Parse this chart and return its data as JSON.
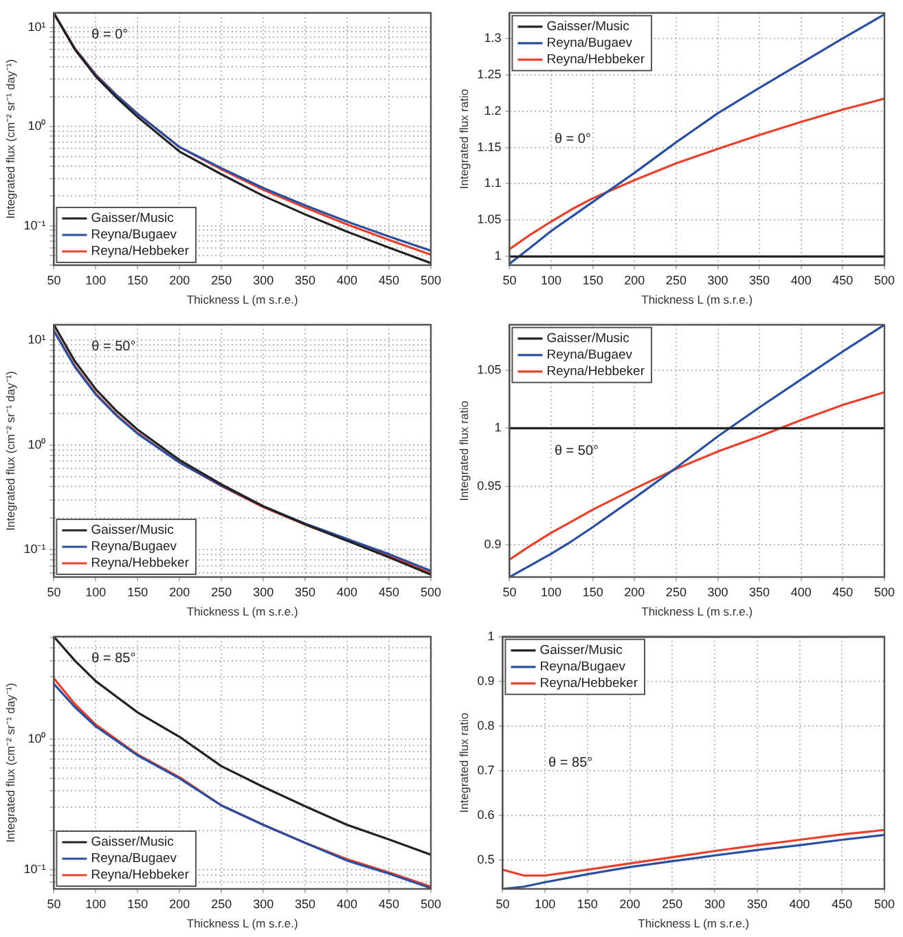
{
  "chart_data": [
    {
      "type": "line",
      "xlabel": "Thickness L (m s.r.e.)",
      "ylabel": "Integrated flux (cm⁻² sr⁻¹ day⁻¹)",
      "annotations": [
        "θ = 0°"
      ],
      "log": "y",
      "grid": true,
      "legend": "bottom left",
      "line_style": "solid",
      "marker": "none",
      "x": [
        50,
        75,
        100,
        125,
        150,
        200,
        250,
        300,
        350,
        400,
        450,
        500
      ],
      "xlim": [
        50,
        500
      ],
      "xticks": [
        50,
        100,
        150,
        200,
        250,
        300,
        350,
        400,
        450,
        500
      ],
      "ylim": [
        0.04,
        14
      ],
      "yticks": [
        {
          "value": 0.04,
          "label": null
        },
        {
          "value": 0.05,
          "label": null
        },
        {
          "value": 0.06,
          "label": null
        },
        {
          "value": 0.07,
          "label": null
        },
        {
          "value": 0.08,
          "label": null
        },
        {
          "value": 0.09,
          "label": null
        },
        {
          "value": 0.1,
          "label": "10⁻¹"
        },
        {
          "value": 0.2,
          "label": null
        },
        {
          "value": 0.3,
          "label": null
        },
        {
          "value": 0.4,
          "label": null
        },
        {
          "value": 0.5,
          "label": null
        },
        {
          "value": 0.6,
          "label": null
        },
        {
          "value": 0.7,
          "label": null
        },
        {
          "value": 0.8,
          "label": null
        },
        {
          "value": 0.9,
          "label": null
        },
        {
          "value": 1,
          "label": "10⁰"
        },
        {
          "value": 2,
          "label": null
        },
        {
          "value": 3,
          "label": null
        },
        {
          "value": 4,
          "label": null
        },
        {
          "value": 5,
          "label": null
        },
        {
          "value": 6,
          "label": null
        },
        {
          "value": 7,
          "label": null
        },
        {
          "value": 8,
          "label": null
        },
        {
          "value": 9,
          "label": null
        },
        {
          "value": 10,
          "label": "10¹"
        }
      ],
      "series": [
        {
          "name": "Gaisser/Music",
          "color": "#222222",
          "values": [
            13.9,
            6.0,
            3.2,
            1.95,
            1.25,
            0.56,
            0.33,
            0.2,
            0.13,
            0.087,
            0.06,
            0.042
          ]
        },
        {
          "name": "Reyna/Bugaev",
          "color": "#2b4fa0",
          "values": [
            13.8,
            6.1,
            3.3,
            2.05,
            1.34,
            0.62,
            0.38,
            0.24,
            0.16,
            0.11,
            0.078,
            0.056
          ]
        },
        {
          "name": "Reyna/Hebbeker",
          "color": "#e8402a",
          "values": [
            14.0,
            6.15,
            3.35,
            2.07,
            1.35,
            0.62,
            0.37,
            0.23,
            0.152,
            0.103,
            0.072,
            0.051
          ]
        }
      ]
    },
    {
      "type": "line",
      "xlabel": "Thickness L (m s.r.e.)",
      "ylabel": "Integrated flux ratio",
      "annotations": [
        "θ = 0°"
      ],
      "grid": true,
      "legend": "top left",
      "line_style": "solid",
      "marker": "none",
      "x": [
        50,
        75,
        100,
        125,
        150,
        200,
        250,
        300,
        350,
        400,
        450,
        500
      ],
      "xlim": [
        50,
        500
      ],
      "xticks": [
        50,
        100,
        150,
        200,
        250,
        300,
        350,
        400,
        450,
        500
      ],
      "ylim": [
        0.988,
        1.335
      ],
      "yticks": [
        1,
        1.05,
        1.1,
        1.15,
        1.2,
        1.25,
        1.3
      ],
      "series": [
        {
          "name": "Gaisser/Music",
          "color": "#222222",
          "values": [
            1,
            1,
            1,
            1,
            1,
            1,
            1,
            1,
            1,
            1,
            1,
            1
          ]
        },
        {
          "name": "Reyna/Bugaev",
          "color": "#2b4fa0",
          "values": [
            0.99,
            1.012,
            1.035,
            1.055,
            1.075,
            1.115,
            1.157,
            1.197,
            1.232,
            1.266,
            1.3,
            1.333
          ]
        },
        {
          "name": "Reyna/Hebbeker",
          "color": "#e8402a",
          "values": [
            1.01,
            1.03,
            1.048,
            1.065,
            1.08,
            1.105,
            1.128,
            1.148,
            1.167,
            1.185,
            1.202,
            1.217
          ]
        }
      ]
    },
    {
      "type": "line",
      "xlabel": "Thickness L (m s.r.e.)",
      "ylabel": "Integrated flux (cm⁻² sr⁻¹ day⁻¹)",
      "annotations": [
        "θ = 50°"
      ],
      "log": "y",
      "grid": true,
      "legend": "bottom left",
      "line_style": "solid",
      "marker": "none",
      "x": [
        50,
        75,
        100,
        125,
        150,
        200,
        250,
        300,
        350,
        400,
        450,
        500
      ],
      "xlim": [
        50,
        500
      ],
      "xticks": [
        50,
        100,
        150,
        200,
        250,
        300,
        350,
        400,
        450,
        500
      ],
      "ylim": [
        0.055,
        14
      ],
      "yticks": [
        {
          "value": 0.06,
          "label": null
        },
        {
          "value": 0.07,
          "label": null
        },
        {
          "value": 0.08,
          "label": null
        },
        {
          "value": 0.09,
          "label": null
        },
        {
          "value": 0.1,
          "label": "10⁻¹"
        },
        {
          "value": 0.2,
          "label": null
        },
        {
          "value": 0.3,
          "label": null
        },
        {
          "value": 0.4,
          "label": null
        },
        {
          "value": 0.5,
          "label": null
        },
        {
          "value": 0.6,
          "label": null
        },
        {
          "value": 0.7,
          "label": null
        },
        {
          "value": 0.8,
          "label": null
        },
        {
          "value": 0.9,
          "label": null
        },
        {
          "value": 1,
          "label": "10⁰"
        },
        {
          "value": 2,
          "label": null
        },
        {
          "value": 3,
          "label": null
        },
        {
          "value": 4,
          "label": null
        },
        {
          "value": 5,
          "label": null
        },
        {
          "value": 6,
          "label": null
        },
        {
          "value": 7,
          "label": null
        },
        {
          "value": 8,
          "label": null
        },
        {
          "value": 9,
          "label": null
        },
        {
          "value": 10,
          "label": "10¹"
        }
      ],
      "series": [
        {
          "name": "Gaisser/Music",
          "color": "#222222",
          "values": [
            14,
            6.3,
            3.4,
            2.1,
            1.4,
            0.72,
            0.42,
            0.26,
            0.175,
            0.122,
            0.085,
            0.058
          ]
        },
        {
          "name": "Reyna/Bugaev",
          "color": "#2b4fa0",
          "values": [
            12.2,
            5.56,
            3.03,
            1.9,
            1.28,
            0.68,
            0.41,
            0.26,
            0.178,
            0.127,
            0.091,
            0.063
          ]
        },
        {
          "name": "Reyna/Hebbeker",
          "color": "#e8402a",
          "values": [
            12.4,
            5.66,
            3.09,
            1.93,
            1.3,
            0.68,
            0.405,
            0.255,
            0.174,
            0.123,
            0.087,
            0.06
          ]
        }
      ]
    },
    {
      "type": "line",
      "xlabel": "Thickness L (m s.r.e.)",
      "ylabel": "Integrated flux ratio",
      "annotations": [
        "θ = 50°"
      ],
      "grid": true,
      "legend": "top left",
      "line_style": "solid",
      "marker": "none",
      "x": [
        50,
        75,
        100,
        125,
        150,
        200,
        250,
        300,
        350,
        400,
        450,
        500
      ],
      "xlim": [
        50,
        500
      ],
      "xticks": [
        50,
        100,
        150,
        200,
        250,
        300,
        350,
        400,
        450,
        500
      ],
      "ylim": [
        0.872,
        1.089
      ],
      "yticks": [
        0.9,
        0.95,
        1,
        1.05
      ],
      "series": [
        {
          "name": "Gaisser/Music",
          "color": "#222222",
          "values": [
            1,
            1,
            1,
            1,
            1,
            1,
            1,
            1,
            1,
            1,
            1,
            1
          ]
        },
        {
          "name": "Reyna/Bugaev",
          "color": "#2b4fa0",
          "values": [
            0.872,
            0.882,
            0.892,
            0.903,
            0.915,
            0.94,
            0.966,
            0.993,
            1.018,
            1.042,
            1.066,
            1.089
          ]
        },
        {
          "name": "Reyna/Hebbeker",
          "color": "#e8402a",
          "values": [
            0.887,
            0.899,
            0.91,
            0.92,
            0.93,
            0.948,
            0.965,
            0.98,
            0.993,
            1.007,
            1.02,
            1.031
          ]
        }
      ]
    },
    {
      "type": "line",
      "xlabel": "Thickness L (m s.r.e.)",
      "ylabel": "Integrated flux (cm⁻² sr⁻¹ day⁻¹)",
      "annotations": [
        "θ = 85°"
      ],
      "log": "y",
      "grid": true,
      "legend": "bottom left",
      "line_style": "solid",
      "marker": "none",
      "x": [
        50,
        75,
        100,
        150,
        200,
        250,
        300,
        350,
        400,
        450,
        500
      ],
      "xlim": [
        50,
        500
      ],
      "xticks": [
        50,
        100,
        150,
        200,
        250,
        300,
        350,
        400,
        450,
        500
      ],
      "ylim": [
        0.071,
        6.1
      ],
      "yticks": [
        {
          "value": 0.08,
          "label": null
        },
        {
          "value": 0.09,
          "label": null
        },
        {
          "value": 0.1,
          "label": "10⁻¹"
        },
        {
          "value": 0.2,
          "label": null
        },
        {
          "value": 0.3,
          "label": null
        },
        {
          "value": 0.4,
          "label": null
        },
        {
          "value": 0.5,
          "label": null
        },
        {
          "value": 0.6,
          "label": null
        },
        {
          "value": 0.7,
          "label": null
        },
        {
          "value": 0.8,
          "label": null
        },
        {
          "value": 0.9,
          "label": null
        },
        {
          "value": 1,
          "label": "10⁰"
        },
        {
          "value": 2,
          "label": null
        },
        {
          "value": 3,
          "label": null
        },
        {
          "value": 4,
          "label": null
        },
        {
          "value": 5,
          "label": null
        },
        {
          "value": 6,
          "label": null
        }
      ],
      "series": [
        {
          "name": "Gaisser/Music",
          "color": "#222222",
          "values": [
            6.1,
            4.0,
            2.78,
            1.6,
            1.04,
            0.62,
            0.43,
            0.305,
            0.22,
            0.17,
            0.13
          ]
        },
        {
          "name": "Reyna/Bugaev",
          "color": "#2b4fa0",
          "values": [
            2.65,
            1.76,
            1.25,
            0.75,
            0.5,
            0.31,
            0.22,
            0.16,
            0.117,
            0.093,
            0.072
          ]
        },
        {
          "name": "Reyna/Hebbeker",
          "color": "#e8402a",
          "values": [
            2.92,
            1.86,
            1.29,
            0.76,
            0.51,
            0.31,
            0.22,
            0.16,
            0.12,
            0.095,
            0.074
          ]
        }
      ]
    },
    {
      "type": "line",
      "xlabel": "Thickness L (m s.r.e.)",
      "ylabel": "Integrated flux ratio",
      "annotations": [
        "θ = 85°"
      ],
      "grid": true,
      "legend": "top left",
      "line_style": "solid",
      "marker": "none",
      "x": [
        50,
        75,
        100,
        150,
        200,
        250,
        300,
        350,
        400,
        450,
        500
      ],
      "xlim": [
        50,
        500
      ],
      "xticks": [
        50,
        100,
        150,
        200,
        250,
        300,
        350,
        400,
        450,
        500
      ],
      "ylim": [
        0.435,
        1
      ],
      "yticks": [
        0.5,
        0.6,
        0.7,
        0.8,
        0.9,
        1
      ],
      "series": [
        {
          "name": "Gaisser/Music",
          "color": "#222222",
          "values": [
            1,
            1,
            1,
            1,
            1,
            1,
            1,
            1,
            1,
            1,
            1
          ]
        },
        {
          "name": "Reyna/Bugaev",
          "color": "#2b4fa0",
          "values": [
            0.435,
            0.44,
            0.45,
            0.468,
            0.484,
            0.497,
            0.51,
            0.522,
            0.533,
            0.545,
            0.556
          ]
        },
        {
          "name": "Reyna/Hebbeker",
          "color": "#e8402a",
          "values": [
            0.478,
            0.465,
            0.465,
            0.478,
            0.492,
            0.506,
            0.52,
            0.533,
            0.545,
            0.557,
            0.567
          ]
        }
      ]
    }
  ]
}
